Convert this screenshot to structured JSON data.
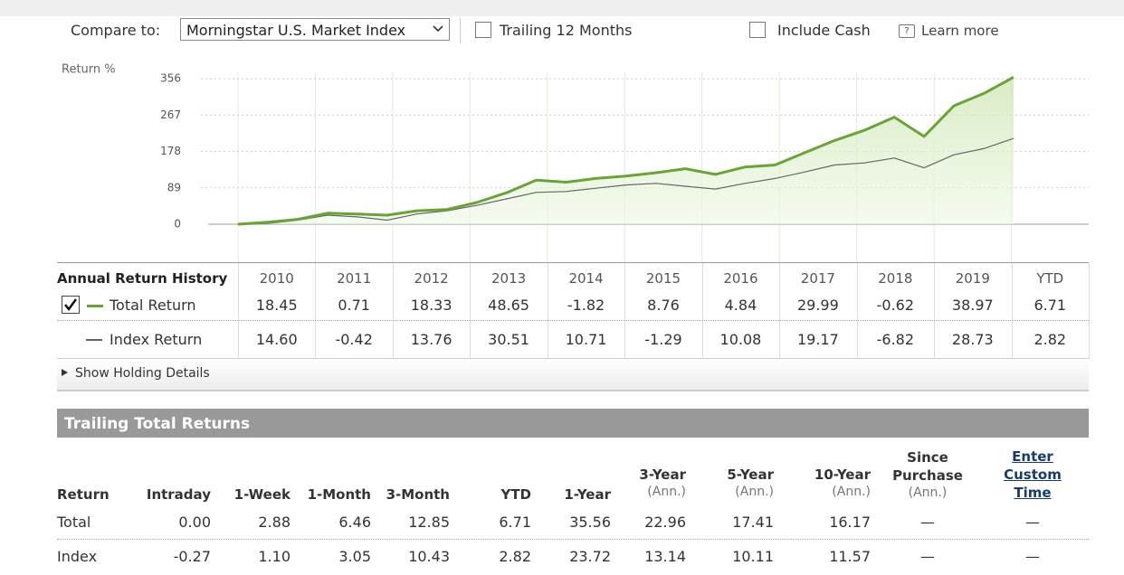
{
  "controls": {
    "compare_label": "Compare to:",
    "compare_value": "Morningstar U.S. Market Index",
    "trailing": "Trailing 12 Months",
    "cash": "Include Cash",
    "learn": "Learn more"
  },
  "chart_data": {
    "type": "line",
    "ylabel": "Return %",
    "categories": [
      null,
      null,
      null,
      null,
      null,
      null,
      null,
      null,
      null,
      null,
      null,
      null,
      null,
      null,
      null,
      null,
      null,
      null,
      null,
      null,
      null,
      null,
      null,
      null,
      null,
      null,
      null
    ],
    "series": [
      {
        "name": "Total Return",
        "color": "#6aa33a",
        "values": [
          0,
          5,
          12,
          27,
          25,
          22,
          33,
          36,
          53,
          77,
          108,
          103,
          112,
          118,
          126,
          136,
          122,
          140,
          145,
          175,
          205,
          230,
          262,
          215,
          290,
          320,
          360
        ]
      },
      {
        "name": "Index Return",
        "color": "#666666",
        "values": [
          0,
          2,
          10,
          22,
          18,
          10,
          25,
          33,
          46,
          62,
          78,
          80,
          88,
          96,
          100,
          93,
          86,
          100,
          112,
          128,
          145,
          150,
          162,
          138,
          170,
          185,
          210
        ]
      }
    ],
    "ylim": [
      -93,
      394
    ],
    "yticks": [
      0,
      89,
      178,
      267,
      356
    ],
    "grid": true
  },
  "annual": {
    "title": "Annual Return History",
    "columns": [
      "2010",
      "2011",
      "2012",
      "2013",
      "2014",
      "2015",
      "2016",
      "2017",
      "2018",
      "2019",
      "YTD"
    ],
    "rows": [
      [
        "18.45",
        "0.71",
        "18.33",
        "48.65",
        "-1.82",
        "8.76",
        "4.84",
        "29.99",
        "-0.62",
        "38.97",
        "6.71"
      ],
      [
        "14.60",
        "-0.42",
        "13.76",
        "30.51",
        "10.71",
        "-1.29",
        "10.08",
        "19.17",
        "-6.82",
        "28.73",
        "2.82"
      ]
    ]
  },
  "show_details": "Show Holding Details",
  "trailing": {
    "title": "Trailing Total Returns",
    "headers": [
      {
        "label": "Return"
      },
      {
        "label": "Intraday"
      },
      {
        "label": "1-Week"
      },
      {
        "label": "1-Month"
      },
      {
        "label": "3-Month"
      },
      {
        "label": "YTD"
      },
      {
        "label": "1-Year"
      },
      {
        "label": "3-Year",
        "sub": "(Ann.)"
      },
      {
        "label": "5-Year",
        "sub": "(Ann.)"
      },
      {
        "label": "10-Year",
        "sub": "(Ann.)"
      },
      {
        "label": "Since Purchase",
        "sub": "(Ann.)"
      },
      {
        "label": "Enter Custom Time"
      }
    ],
    "rows": [
      [
        "Total",
        "0.00",
        "2.88",
        "6.46",
        "12.85",
        "6.71",
        "35.56",
        "22.96",
        "17.41",
        "16.17",
        "—",
        "—"
      ],
      [
        "Index",
        "-0.27",
        "1.10",
        "3.05",
        "10.43",
        "2.82",
        "23.72",
        "13.14",
        "10.11",
        "11.57",
        "—",
        "—"
      ]
    ]
  }
}
